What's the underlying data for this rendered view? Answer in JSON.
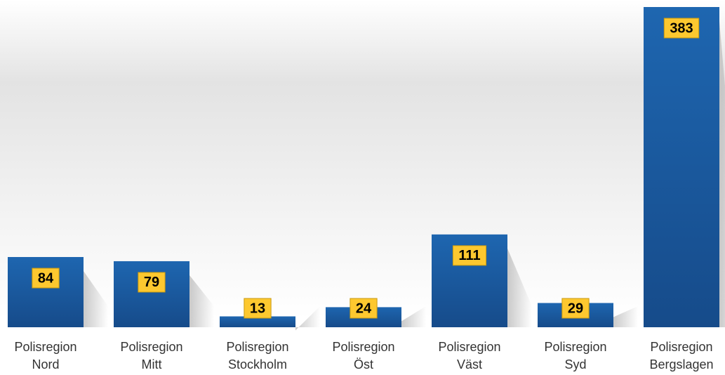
{
  "chart_data": {
    "type": "bar",
    "categories": [
      "Polisregion Nord",
      "Polisregion Mitt",
      "Polisregion Stockholm",
      "Polisregion Öst",
      "Polisregion Väst",
      "Polisregion Syd",
      "Polisregion Bergslagen"
    ],
    "values": [
      84,
      79,
      13,
      24,
      111,
      29,
      383
    ],
    "color": "#1a5ea6"
  }
}
